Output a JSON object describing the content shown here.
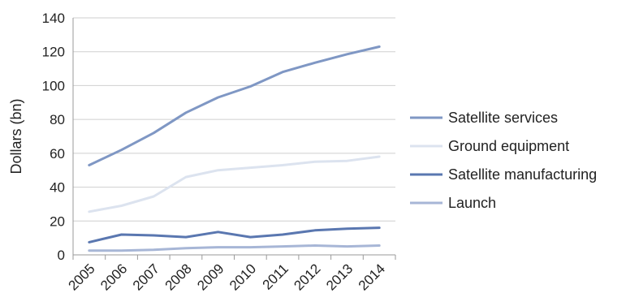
{
  "chart_data": {
    "type": "line",
    "title": "",
    "xlabel": "",
    "ylabel": "Dollars (bn)",
    "ylim": [
      0,
      140
    ],
    "yticks": [
      "0",
      "20",
      "40",
      "60",
      "80",
      "100",
      "120",
      "140"
    ],
    "categories": [
      "2005",
      "2006",
      "2007",
      "2008",
      "2009",
      "2010",
      "2011",
      "2012",
      "2013",
      "2014"
    ],
    "grid": "horizontal",
    "legend_position": "right",
    "series": [
      {
        "name": "Satellite services",
        "color": "#7f97c4",
        "values": [
          53,
          62,
          72,
          84,
          93,
          99.5,
          108,
          113.5,
          118.5,
          123
        ]
      },
      {
        "name": "Ground equipment",
        "color": "#dce3ef",
        "values": [
          25.5,
          29,
          34.5,
          46,
          50,
          51.5,
          53,
          55,
          55.5,
          58
        ]
      },
      {
        "name": "Satellite manufacturing",
        "color": "#5a77b0",
        "values": [
          7.5,
          12,
          11.5,
          10.5,
          13.5,
          10.5,
          12,
          14.5,
          15.5,
          16
        ]
      },
      {
        "name": "Launch",
        "color": "#a7b6d6",
        "values": [
          2.5,
          2.5,
          3,
          4,
          4.5,
          4.5,
          5,
          5.5,
          5,
          5.5
        ]
      }
    ]
  }
}
